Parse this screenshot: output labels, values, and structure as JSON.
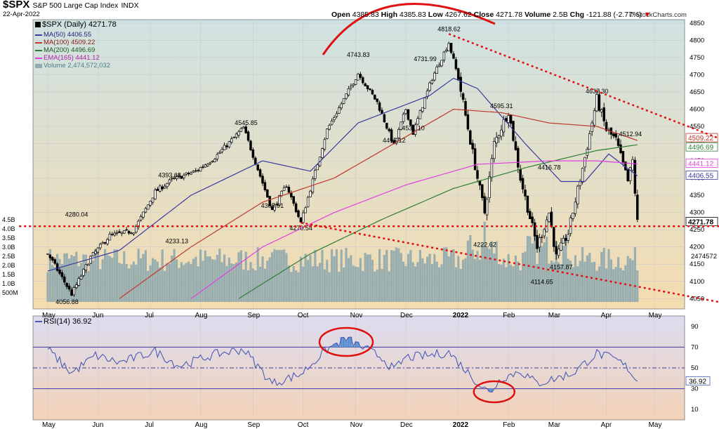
{
  "header": {
    "symbol": "$SPX",
    "name": "S&P 500 Large Cap Index",
    "exchange": "INDX",
    "date": "22-Apr-2022",
    "watermark": "© StockCharts.com",
    "ohlc": {
      "open_label": "Open",
      "open": "4385.83",
      "high_label": "High",
      "high": "4385.83",
      "low_label": "Low",
      "low": "4267.62",
      "close_label": "Close",
      "close": "4271.78",
      "volume_label": "Volume",
      "volume": "2.5B",
      "chg_label": "Chg",
      "chg": "-121.88 (-2.77%)",
      "chg_arrow": "▼"
    }
  },
  "legend": {
    "main_label": "$SPX (Daily) 4271.78",
    "items": [
      {
        "text": "MA(50) 4406.55",
        "color": "#3a3aa0"
      },
      {
        "text": "MA(100) 4509.22",
        "color": "#c0392b"
      },
      {
        "text": "MA(200) 4496.69",
        "color": "#2e7d32"
      },
      {
        "text": "EMA(165) 4441.12",
        "color": "#e040e0"
      },
      {
        "text": "Volume 2,474,572,032",
        "color": "#8faab0"
      }
    ]
  },
  "colors": {
    "price_bg_top": "#cfe2e2",
    "price_bg_bottom": "#f5dcb0",
    "rsi_bg_top": "#dcdcf0",
    "rsi_bg_bottom": "#f4d3b8",
    "candle": "#000000",
    "volume": "#8fa9ae",
    "ma50": "#3a3aa0",
    "ma100": "#c0392b",
    "ma200": "#2e7d32",
    "ema165": "#e040e0",
    "annotation": "#e01010",
    "rsi_line": "#4a5ab8"
  },
  "chart_data": [
    {
      "type": "candlestick",
      "title": "$SPX S&P 500 Large Cap Index",
      "x_labels": [
        "May",
        "Jun",
        "Jul",
        "Aug",
        "Sep",
        "Oct",
        "Nov",
        "Dec",
        "2022",
        "Feb",
        "Mar",
        "Apr",
        "May"
      ],
      "y_ticks": [
        4050,
        4100,
        4150,
        4200,
        4250,
        4300,
        4350,
        4400,
        4450,
        4500,
        4550,
        4600,
        4650,
        4700,
        4750,
        4800,
        4850
      ],
      "ylim": [
        4020,
        4860
      ],
      "close_anchors": [
        {
          "t": 0,
          "v": 4181
        },
        {
          "t": 10,
          "v": 4063
        },
        {
          "t": 18,
          "v": 4170
        },
        {
          "t": 26,
          "v": 4233
        },
        {
          "t": 36,
          "v": 4247
        },
        {
          "t": 45,
          "v": 4360
        },
        {
          "t": 52,
          "v": 4395
        },
        {
          "t": 62,
          "v": 4420
        },
        {
          "t": 70,
          "v": 4460
        },
        {
          "t": 82,
          "v": 4546
        },
        {
          "t": 94,
          "v": 4306
        },
        {
          "t": 100,
          "v": 4380
        },
        {
          "t": 106,
          "v": 4270
        },
        {
          "t": 117,
          "v": 4540
        },
        {
          "t": 130,
          "v": 4704
        },
        {
          "t": 138,
          "v": 4620
        },
        {
          "t": 145,
          "v": 4495
        },
        {
          "t": 150,
          "v": 4600
        },
        {
          "t": 153,
          "v": 4531
        },
        {
          "t": 161,
          "v": 4690
        },
        {
          "t": 168,
          "v": 4793
        },
        {
          "t": 172,
          "v": 4690
        },
        {
          "t": 180,
          "v": 4400
        },
        {
          "t": 183,
          "v": 4300
        },
        {
          "t": 187,
          "v": 4500
        },
        {
          "t": 193,
          "v": 4595
        },
        {
          "t": 198,
          "v": 4400
        },
        {
          "t": 205,
          "v": 4200
        },
        {
          "t": 210,
          "v": 4300
        },
        {
          "t": 213,
          "v": 4170
        },
        {
          "t": 218,
          "v": 4240
        },
        {
          "t": 225,
          "v": 4460
        },
        {
          "t": 230,
          "v": 4630
        },
        {
          "t": 234,
          "v": 4540
        },
        {
          "t": 238,
          "v": 4510
        },
        {
          "t": 243,
          "v": 4390
        },
        {
          "t": 245,
          "v": 4450
        },
        {
          "t": 247,
          "v": 4271
        }
      ],
      "annotations": [
        {
          "text": "4818.62",
          "t": 168,
          "v": 4818.62
        },
        {
          "text": "4743.83",
          "t": 130,
          "v": 4743.83
        },
        {
          "text": "4731.99",
          "t": 158,
          "v": 4731.99
        },
        {
          "text": "4637.30",
          "t": 230,
          "v": 4637.3
        },
        {
          "text": "4595.31",
          "t": 190,
          "v": 4595.31
        },
        {
          "text": "4545.85",
          "t": 83,
          "v": 4545.85
        },
        {
          "text": "4531.10",
          "t": 153,
          "v": 4531.1
        },
        {
          "text": "4512.94",
          "t": 244,
          "v": 4512.94
        },
        {
          "text": "4495.12",
          "t": 145,
          "v": 4495.12
        },
        {
          "text": "4416.78",
          "t": 210,
          "v": 4416.78
        },
        {
          "text": "4393.68",
          "t": 51,
          "v": 4393.68
        },
        {
          "text": "4305.91",
          "t": 94,
          "v": 4305.91
        },
        {
          "text": "4280.04",
          "t": 12,
          "v": 4280.04
        },
        {
          "text": "4270.54",
          "t": 106,
          "v": 4270.54
        },
        {
          "text": "4233.13",
          "t": 54,
          "v": 4233.13
        },
        {
          "text": "4222.62",
          "t": 183,
          "v": 4222.62
        },
        {
          "text": "4157.87",
          "t": 215,
          "v": 4157.87
        },
        {
          "text": "4114.65",
          "t": 207,
          "v": 4114.65
        },
        {
          "text": "4056.88",
          "t": 8,
          "v": 4056.88
        }
      ],
      "moving_averages": [
        {
          "name": "MA(50)",
          "last": 4406.55,
          "anchors": [
            [
              0,
              4130
            ],
            [
              30,
              4190
            ],
            [
              60,
              4350
            ],
            [
              90,
              4450
            ],
            [
              110,
              4420
            ],
            [
              130,
              4560
            ],
            [
              160,
              4640
            ],
            [
              170,
              4690
            ],
            [
              180,
              4660
            ],
            [
              200,
              4500
            ],
            [
              215,
              4390
            ],
            [
              225,
              4390
            ],
            [
              235,
              4470
            ],
            [
              247,
              4406.55
            ]
          ]
        },
        {
          "name": "MA(100)",
          "last": 4509.22,
          "anchors": [
            [
              30,
              4050
            ],
            [
              60,
              4200
            ],
            [
              90,
              4330
            ],
            [
              120,
              4400
            ],
            [
              150,
              4520
            ],
            [
              170,
              4600
            ],
            [
              190,
              4590
            ],
            [
              210,
              4560
            ],
            [
              230,
              4550
            ],
            [
              247,
              4509.22
            ]
          ]
        },
        {
          "name": "MA(200)",
          "last": 4496.69,
          "anchors": [
            [
              80,
              4050
            ],
            [
              110,
              4180
            ],
            [
              140,
              4280
            ],
            [
              170,
              4370
            ],
            [
              200,
              4430
            ],
            [
              230,
              4480
            ],
            [
              247,
              4496.69
            ]
          ]
        },
        {
          "name": "EMA(165)",
          "last": 4441.12,
          "anchors": [
            [
              60,
              4050
            ],
            [
              90,
              4200
            ],
            [
              120,
              4300
            ],
            [
              150,
              4380
            ],
            [
              180,
              4440
            ],
            [
              210,
              4450
            ],
            [
              230,
              4450
            ],
            [
              247,
              4441.12
            ]
          ]
        }
      ],
      "right_labels": [
        "4509.22",
        "4496.69",
        "4441.12",
        "4406.55",
        "4271.78"
      ],
      "trendlines": [
        {
          "from": [
            168,
            4818.62
          ],
          "to": [
            285,
            4505
          ]
        },
        {
          "from": [
            106,
            4270.54
          ],
          "to": [
            285,
            4035
          ]
        },
        {
          "from": [
            -12,
            4260
          ],
          "to": [
            290,
            4260
          ]
        }
      ],
      "volume": {
        "unit": "B",
        "y_ticks": [
          "4.5B",
          "4.0B",
          "3.5B",
          "3.0B",
          "2.5B",
          "2.0B",
          "1.5B",
          "1.0B",
          "500M"
        ],
        "last_label": "2474572",
        "avg": 2.5
      }
    },
    {
      "type": "line",
      "title": "RSI(14) 36.92",
      "series": [
        {
          "name": "RSI(14)",
          "last": 36.92
        }
      ],
      "y_ticks": [
        10,
        30,
        50,
        70,
        90
      ],
      "ylim": [
        0,
        100
      ],
      "ref_lines": [
        70,
        50,
        30
      ],
      "anchors": [
        [
          0,
          68
        ],
        [
          10,
          45
        ],
        [
          20,
          62
        ],
        [
          30,
          55
        ],
        [
          45,
          66
        ],
        [
          55,
          52
        ],
        [
          70,
          63
        ],
        [
          82,
          68
        ],
        [
          94,
          35
        ],
        [
          106,
          44
        ],
        [
          117,
          68
        ],
        [
          125,
          78
        ],
        [
          130,
          72
        ],
        [
          140,
          60
        ],
        [
          145,
          48
        ],
        [
          150,
          60
        ],
        [
          160,
          62
        ],
        [
          168,
          65
        ],
        [
          180,
          36
        ],
        [
          185,
          26
        ],
        [
          190,
          40
        ],
        [
          198,
          47
        ],
        [
          205,
          35
        ],
        [
          213,
          40
        ],
        [
          220,
          45
        ],
        [
          230,
          64
        ],
        [
          238,
          58
        ],
        [
          243,
          50
        ],
        [
          247,
          36.92
        ]
      ],
      "right_label": "36.92",
      "x_labels": [
        "May",
        "Jun",
        "Jul",
        "Aug",
        "Sep",
        "Oct",
        "Nov",
        "Dec",
        "2022",
        "Feb",
        "Mar",
        "Apr",
        "May"
      ]
    }
  ]
}
